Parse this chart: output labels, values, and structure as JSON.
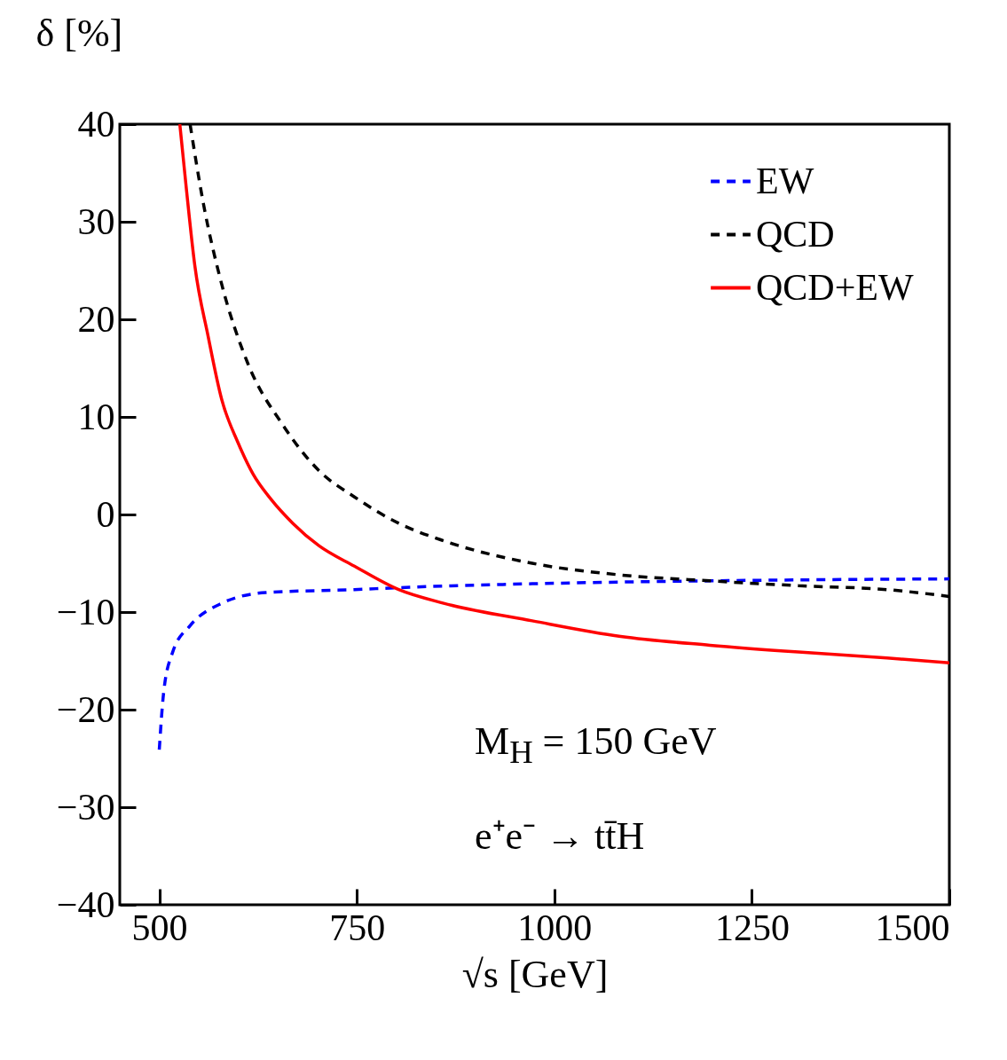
{
  "chart_data": {
    "type": "line",
    "xlabel": "√s [GeV]",
    "ylabel": "δ [%]",
    "xlim": [
      450,
      1500
    ],
    "xticks": [
      500,
      750,
      1000,
      1250,
      1500
    ],
    "ylim": [
      -40,
      40
    ],
    "yticks": [
      -40,
      -30,
      -20,
      -10,
      0,
      10,
      20,
      30,
      40
    ],
    "grid": false,
    "legend": "top right",
    "marker": "none",
    "series": [
      {
        "name": "EW",
        "color": "#0000ff",
        "line_style": "dashed",
        "x": [
          500,
          505.6,
          517,
          539,
          579,
          635,
          747,
          803,
          972,
          1197,
          1500
        ],
        "values": [
          -24.1,
          -18.2,
          -14.1,
          -11.4,
          -9.1,
          -8.0,
          -7.7,
          -7.5,
          -7.1,
          -6.8,
          -6.6
        ]
      },
      {
        "name": "QCD",
        "color": "#000000",
        "line_style": "dashed",
        "x": [
          539,
          556,
          579,
          612,
          657,
          702,
          747,
          803,
          860,
          972,
          1084,
          1197,
          1309,
          1421,
          1500
        ],
        "values": [
          40,
          31.8,
          23.6,
          15.5,
          9.1,
          4.5,
          1.8,
          -0.9,
          -2.7,
          -5,
          -6.2,
          -6.8,
          -7.3,
          -7.7,
          -8.4
        ]
      },
      {
        "name": "QCD+EW",
        "color": "#ff0000",
        "line_style": "solid",
        "x": [
          526,
          534,
          545,
          562,
          579,
          600,
          619,
          641,
          669,
          702,
          747,
          803,
          860,
          972,
          1084,
          1197,
          1309,
          1421,
          1500
        ],
        "values": [
          40,
          33.6,
          25.5,
          18.2,
          11.8,
          7.3,
          4.1,
          1.6,
          -0.9,
          -3.2,
          -5.3,
          -7.7,
          -9.1,
          -10.9,
          -12.5,
          -13.4,
          -14.1,
          -14.7,
          -15.2
        ]
      }
    ],
    "annotations": [
      "M$_{H}$ = 150 GeV",
      "e⁺e⁻ → tt̄H"
    ]
  }
}
